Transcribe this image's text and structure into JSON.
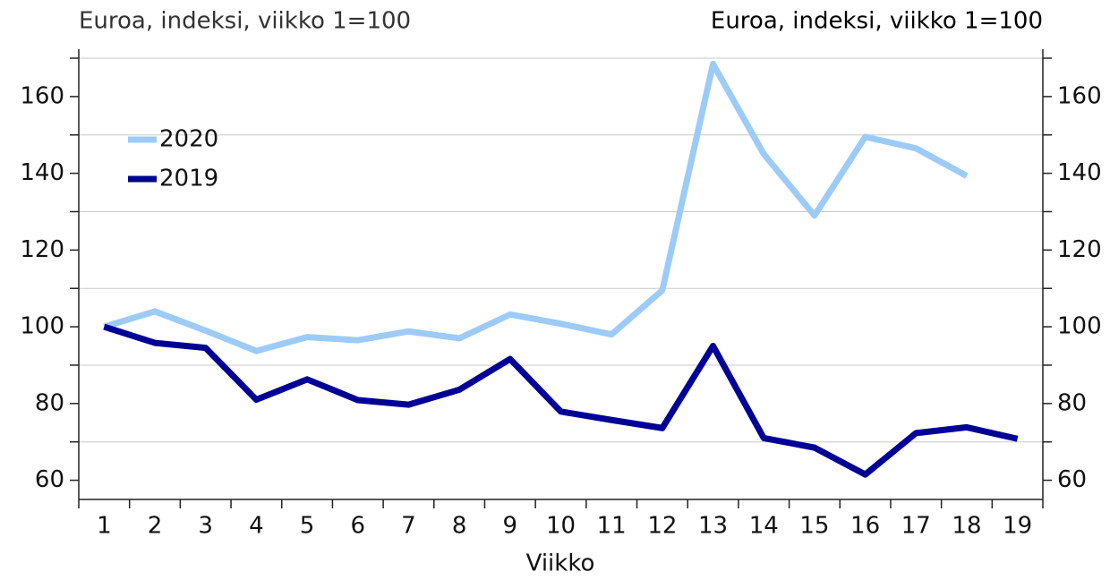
{
  "chart_data": {
    "type": "line",
    "y_label": "Euroa, indeksi, viikko 1=100",
    "y2_label": "Euroa, indeksi, viikko 1=100",
    "x_label": "Viikko",
    "categories": [
      "1",
      "2",
      "3",
      "4",
      "5",
      "6",
      "7",
      "8",
      "9",
      "10",
      "11",
      "12",
      "13",
      "14",
      "15",
      "16",
      "17",
      "18",
      "19"
    ],
    "series": [
      {
        "name": "2020",
        "color": "#9dcbf7",
        "values": [
          100,
          104,
          99,
          93.7,
          97.3,
          96.5,
          98.8,
          97,
          103.2,
          100.8,
          98,
          109.5,
          168.5,
          145,
          129,
          149.5,
          146.5,
          139.3,
          null
        ]
      },
      {
        "name": "2019",
        "color": "#000096",
        "values": [
          100,
          95.8,
          94.5,
          81,
          86.3,
          80.9,
          79.7,
          83.6,
          91.6,
          77.9,
          75.7,
          73.6,
          95,
          71,
          68.5,
          61.5,
          72.3,
          73.8,
          70.8
        ]
      }
    ],
    "ylim": [
      55,
      170
    ],
    "yticks": [
      60,
      80,
      100,
      120,
      140,
      160
    ],
    "y2lim": [
      55,
      170
    ],
    "y2ticks": [
      60,
      80,
      100,
      120,
      140,
      160
    ],
    "minor_yticks": [
      70,
      90,
      110,
      130,
      150,
      170
    ],
    "grid": true,
    "legend": "upper left"
  }
}
